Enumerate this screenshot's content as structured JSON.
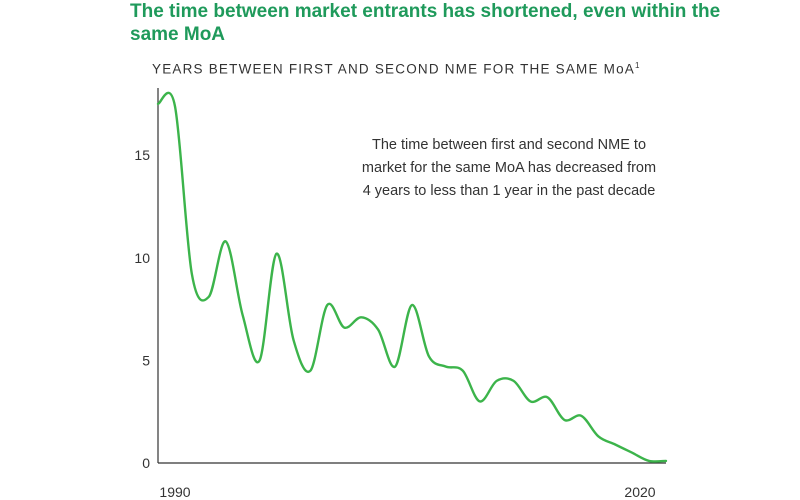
{
  "header": {
    "title": "The time between market entrants has shortened, even within the same MoA",
    "subtitle": "YEARS BETWEEN FIRST AND SECOND NME FOR THE SAME MoA",
    "subtitle_footnote": "1"
  },
  "annotation": "The time between first and second NME to market for the same MoA has decreased from 4 years to less than 1 year in the past decade",
  "chart_data": {
    "type": "line",
    "title": "The time between market entrants has shortened, even within the same MoA",
    "subtitle": "YEARS BETWEEN FIRST AND SECOND NME FOR THE SAME MoA",
    "xlabel": "",
    "ylabel": "",
    "xlim": [
      1990,
      2020
    ],
    "ylim": [
      0,
      18
    ],
    "x_tick_labels": [
      "1990",
      "2020"
    ],
    "y_tick_labels": [
      "0",
      "5",
      "10",
      "15"
    ],
    "y_ticks": [
      0,
      5,
      10,
      15
    ],
    "grid": false,
    "legend": "none",
    "color": "#3cb44b",
    "series": [
      {
        "name": "",
        "x": [
          1990,
          1991,
          1992,
          1993,
          1994,
          1995,
          1996,
          1997,
          1998,
          1999,
          2000,
          2001,
          2002,
          2003,
          2004,
          2005,
          2006,
          2007,
          2008,
          2009,
          2010,
          2011,
          2012,
          2013,
          2014,
          2015,
          2016,
          2017,
          2018,
          2019,
          2020
        ],
        "values": [
          17.5,
          17.4,
          9.2,
          8.1,
          10.8,
          7.2,
          5.0,
          10.2,
          6.0,
          4.5,
          7.7,
          6.6,
          7.1,
          6.5,
          4.7,
          7.7,
          5.2,
          4.7,
          4.5,
          3.0,
          4.0,
          4.0,
          3.0,
          3.2,
          2.1,
          2.3,
          1.3,
          0.9,
          0.5,
          0.1,
          0.1
        ]
      }
    ]
  }
}
